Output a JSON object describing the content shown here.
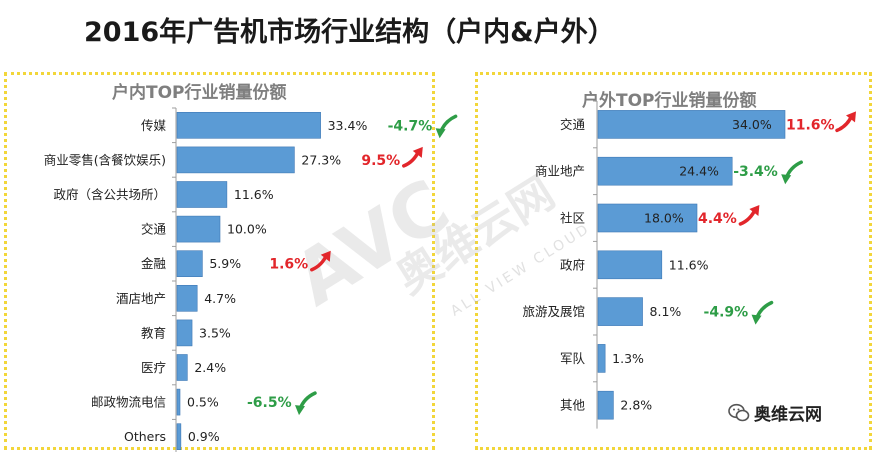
{
  "title": "2016年广告机市场行业结构（户内&户外）",
  "watermark": {
    "text": "AVC",
    "brand": "奥维云网",
    "sub": "ALL VIEW CLOUD"
  },
  "logo_text": "奥维云网",
  "colors": {
    "bar": "#5b9bd5",
    "bar_dark": "#3f78b5",
    "up": "#e2262b",
    "down": "#2e9d47",
    "frame": "#f2d63a"
  },
  "chart_data": [
    {
      "type": "bar",
      "orientation": "horizontal",
      "title": "户内TOP行业销量份额",
      "categories": [
        "传媒",
        "商业零售(含餐饮娱乐)",
        "政府（含公共场所）",
        "交通",
        "金融",
        "酒店地产",
        "教育",
        "医疗",
        "邮政物流电信",
        "Others"
      ],
      "values": [
        33.4,
        27.3,
        11.6,
        10.0,
        5.9,
        4.7,
        3.5,
        2.4,
        0.5,
        0.9
      ],
      "labels": [
        "33.4%",
        "27.3%",
        "11.6%",
        "10.0%",
        "5.9%",
        "4.7%",
        "3.5%",
        "2.4%",
        "0.5%",
        "0.9%"
      ],
      "changes": [
        {
          "category": "传媒",
          "text": "-4.7%",
          "direction": "down"
        },
        {
          "category": "商业零售(含餐饮娱乐)",
          "text": "9.5%",
          "direction": "up"
        },
        {
          "category": "金融",
          "text": "1.6%",
          "direction": "up"
        },
        {
          "category": "邮政物流电信",
          "text": "-6.5%",
          "direction": "down"
        }
      ]
    },
    {
      "type": "bar",
      "orientation": "horizontal",
      "title": "户外TOP行业销量份额",
      "categories": [
        "交通",
        "商业地产",
        "社区",
        "政府",
        "旅游及展馆",
        "军队",
        "其他"
      ],
      "values": [
        34.0,
        24.4,
        18.0,
        11.6,
        8.1,
        1.3,
        2.8
      ],
      "labels": [
        "34.0%",
        "24.4%",
        "18.0%",
        "11.6%",
        "8.1%",
        "1.3%",
        "2.8%"
      ],
      "changes": [
        {
          "category": "交通",
          "text": "11.6%",
          "direction": "up"
        },
        {
          "category": "商业地产",
          "text": "-3.4%",
          "direction": "down"
        },
        {
          "category": "社区",
          "text": "4.4%",
          "direction": "up"
        },
        {
          "category": "旅游及展馆",
          "text": "-4.9%",
          "direction": "down"
        }
      ]
    }
  ]
}
